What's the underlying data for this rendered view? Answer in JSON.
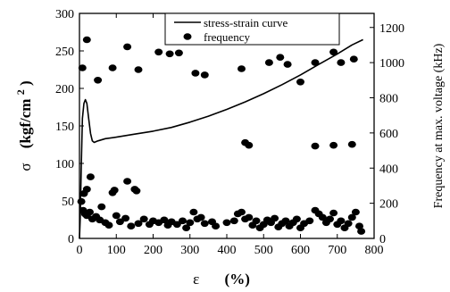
{
  "chart_data": {
    "type": "scatter",
    "xlabel_symbol": "ε",
    "xlabel_unit": "(%)",
    "ylabel_symbol": "σ",
    "ylabel_unit_base": "(kgf/cm",
    "ylabel_unit_sup": "2",
    "ylabel_unit_close": ")",
    "y2label": "Frequency at max. voltage (kHz)",
    "xlim": [
      0,
      800
    ],
    "ylim": [
      0,
      300
    ],
    "y2lim": [
      0,
      1280
    ],
    "x_ticks": [
      0,
      100,
      200,
      300,
      400,
      500,
      600,
      700,
      800
    ],
    "y_ticks": [
      0,
      50,
      100,
      150,
      200,
      250,
      300
    ],
    "y2_ticks": [
      0,
      200,
      400,
      600,
      800,
      1000,
      1200
    ],
    "legend_position": "top-right",
    "series": [
      {
        "name": "stress-strain curve",
        "kind": "line",
        "axis": "left",
        "color": "#000000",
        "points": [
          [
            0,
            0
          ],
          [
            2,
            25
          ],
          [
            5,
            100
          ],
          [
            8,
            160
          ],
          [
            12,
            180
          ],
          [
            16,
            185
          ],
          [
            20,
            180
          ],
          [
            25,
            160
          ],
          [
            30,
            140
          ],
          [
            35,
            130
          ],
          [
            40,
            128
          ],
          [
            50,
            130
          ],
          [
            70,
            133
          ],
          [
            100,
            135
          ],
          [
            150,
            139
          ],
          [
            200,
            143
          ],
          [
            250,
            148
          ],
          [
            300,
            155
          ],
          [
            350,
            163
          ],
          [
            400,
            172
          ],
          [
            450,
            182
          ],
          [
            500,
            193
          ],
          [
            550,
            205
          ],
          [
            600,
            218
          ],
          [
            650,
            232
          ],
          [
            700,
            246
          ],
          [
            740,
            258
          ],
          [
            770,
            265
          ]
        ]
      },
      {
        "name": "frequency",
        "kind": "scatter",
        "axis": "right",
        "color": "#000000",
        "points": [
          [
            8,
            970
          ],
          [
            20,
            1130
          ],
          [
            50,
            900
          ],
          [
            90,
            970
          ],
          [
            130,
            1090
          ],
          [
            160,
            960
          ],
          [
            215,
            1060
          ],
          [
            245,
            1050
          ],
          [
            270,
            1055
          ],
          [
            315,
            940
          ],
          [
            340,
            930
          ],
          [
            440,
            965
          ],
          [
            515,
            1000
          ],
          [
            545,
            1030
          ],
          [
            565,
            990
          ],
          [
            600,
            890
          ],
          [
            640,
            1000
          ],
          [
            690,
            1060
          ],
          [
            710,
            1000
          ],
          [
            745,
            1020
          ],
          [
            450,
            545
          ],
          [
            460,
            530
          ],
          [
            640,
            525
          ],
          [
            690,
            530
          ],
          [
            740,
            535
          ],
          [
            5,
            210
          ],
          [
            12,
            255
          ],
          [
            20,
            280
          ],
          [
            30,
            350
          ],
          [
            60,
            180
          ],
          [
            90,
            260
          ],
          [
            95,
            275
          ],
          [
            130,
            325
          ],
          [
            150,
            280
          ],
          [
            155,
            270
          ],
          [
            10,
            160
          ],
          [
            15,
            140
          ],
          [
            20,
            130
          ],
          [
            28,
            150
          ],
          [
            35,
            110
          ],
          [
            45,
            125
          ],
          [
            55,
            105
          ],
          [
            70,
            90
          ],
          [
            80,
            75
          ],
          [
            100,
            130
          ],
          [
            110,
            95
          ],
          [
            125,
            115
          ],
          [
            140,
            70
          ],
          [
            160,
            85
          ],
          [
            175,
            110
          ],
          [
            190,
            80
          ],
          [
            200,
            100
          ],
          [
            215,
            90
          ],
          [
            230,
            105
          ],
          [
            240,
            75
          ],
          [
            250,
            95
          ],
          [
            265,
            80
          ],
          [
            280,
            100
          ],
          [
            290,
            60
          ],
          [
            300,
            90
          ],
          [
            310,
            150
          ],
          [
            320,
            110
          ],
          [
            330,
            120
          ],
          [
            340,
            85
          ],
          [
            360,
            95
          ],
          [
            370,
            70
          ],
          [
            400,
            90
          ],
          [
            420,
            100
          ],
          [
            430,
            140
          ],
          [
            440,
            150
          ],
          [
            450,
            110
          ],
          [
            460,
            120
          ],
          [
            470,
            75
          ],
          [
            480,
            100
          ],
          [
            490,
            60
          ],
          [
            500,
            80
          ],
          [
            510,
            105
          ],
          [
            520,
            90
          ],
          [
            530,
            115
          ],
          [
            540,
            65
          ],
          [
            550,
            85
          ],
          [
            560,
            100
          ],
          [
            570,
            70
          ],
          [
            580,
            90
          ],
          [
            590,
            110
          ],
          [
            600,
            60
          ],
          [
            610,
            85
          ],
          [
            625,
            100
          ],
          [
            640,
            160
          ],
          [
            650,
            140
          ],
          [
            660,
            120
          ],
          [
            670,
            90
          ],
          [
            680,
            110
          ],
          [
            690,
            145
          ],
          [
            700,
            80
          ],
          [
            710,
            100
          ],
          [
            720,
            60
          ],
          [
            730,
            85
          ],
          [
            740,
            120
          ],
          [
            750,
            150
          ],
          [
            760,
            70
          ],
          [
            765,
            40
          ]
        ]
      }
    ]
  }
}
